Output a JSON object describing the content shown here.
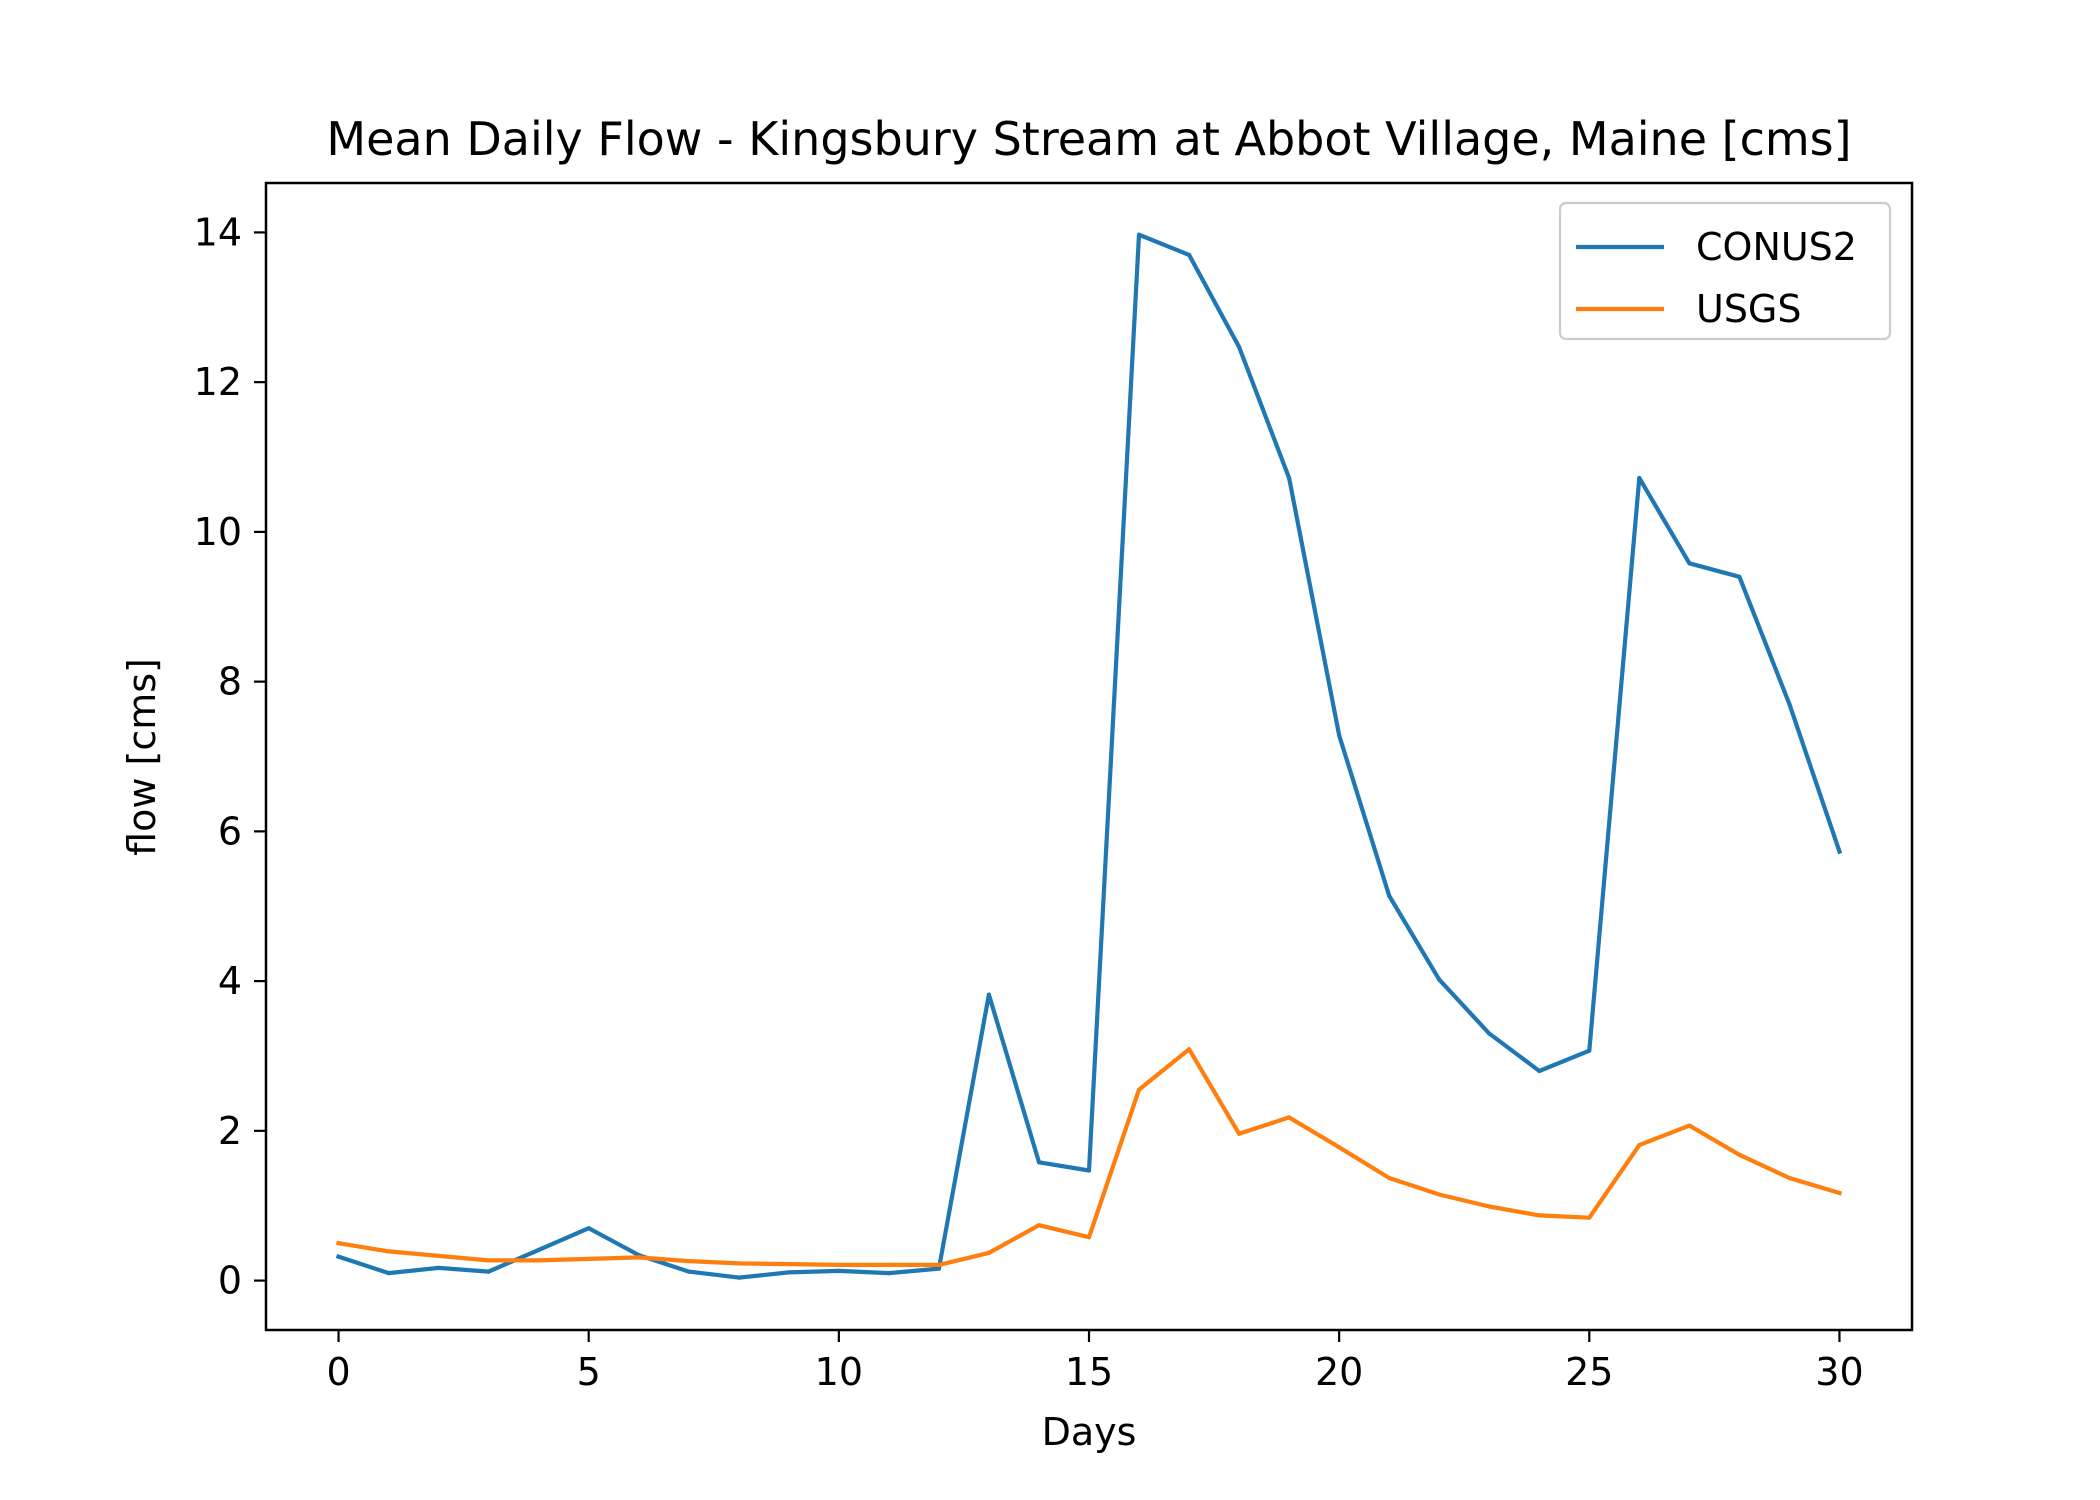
{
  "chart_data": {
    "type": "line",
    "title": "Mean Daily Flow - Kingsbury Stream at Abbot Village, Maine [cms]",
    "xlabel": "Days",
    "ylabel": "flow [cms]",
    "xlim": [
      -1.45,
      31.45
    ],
    "ylim": [
      -0.66,
      14.66
    ],
    "xticks": [
      0,
      5,
      10,
      15,
      20,
      25,
      30
    ],
    "yticks": [
      0,
      2,
      4,
      6,
      8,
      10,
      12,
      14
    ],
    "grid": false,
    "legend_position": "top-right",
    "x": [
      0,
      1,
      2,
      3,
      4,
      5,
      6,
      7,
      8,
      9,
      10,
      11,
      12,
      13,
      14,
      15,
      16,
      17,
      18,
      19,
      20,
      21,
      22,
      23,
      24,
      25,
      26,
      27,
      28,
      29,
      30
    ],
    "series": [
      {
        "name": "CONUS2",
        "color": "#1f77b4",
        "values": [
          0.32,
          0.1,
          0.17,
          0.12,
          0.41,
          0.7,
          0.34,
          0.12,
          0.04,
          0.11,
          0.13,
          0.1,
          0.16,
          3.82,
          1.58,
          1.47,
          13.97,
          13.7,
          12.47,
          10.72,
          7.28,
          5.14,
          4.02,
          3.3,
          2.8,
          3.07,
          10.72,
          9.58,
          9.4,
          7.7,
          5.73
        ]
      },
      {
        "name": "USGS",
        "color": "#ff7f0e",
        "values": [
          0.5,
          0.39,
          0.33,
          0.27,
          0.27,
          0.29,
          0.31,
          0.26,
          0.23,
          0.22,
          0.21,
          0.21,
          0.21,
          0.37,
          0.74,
          0.58,
          2.55,
          3.09,
          1.96,
          2.18,
          1.78,
          1.37,
          1.15,
          0.99,
          0.87,
          0.84,
          1.81,
          2.07,
          1.68,
          1.37,
          1.17
        ]
      }
    ]
  }
}
